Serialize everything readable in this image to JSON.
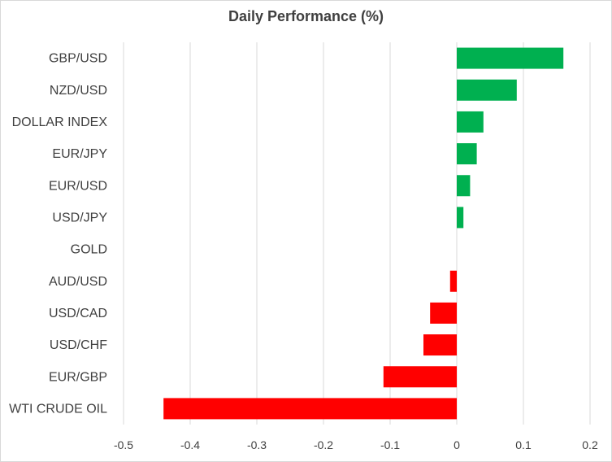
{
  "chart_data": {
    "type": "bar",
    "orientation": "horizontal",
    "title": "Daily Performance (%)",
    "xlabel": "",
    "ylabel": "",
    "xlim": [
      -0.5,
      0.2
    ],
    "xticks": [
      -0.5,
      -0.4,
      -0.3,
      -0.2,
      -0.1,
      0,
      0.1,
      0.2
    ],
    "xtick_labels": [
      "-0.5",
      "-0.4",
      "-0.3",
      "-0.2",
      "-0.1",
      "0",
      "0.1",
      "0.2"
    ],
    "grid": "vertical",
    "legend": "none",
    "categories": [
      "GBP/USD",
      "NZD/USD",
      "DOLLAR INDEX",
      "EUR/JPY",
      "EUR/USD",
      "USD/JPY",
      "GOLD",
      "AUD/USD",
      "USD/CAD",
      "USD/CHF",
      "EUR/GBP",
      "WTI CRUDE OIL"
    ],
    "values": [
      0.16,
      0.09,
      0.04,
      0.03,
      0.02,
      0.01,
      0.0,
      -0.01,
      -0.04,
      -0.05,
      -0.11,
      -0.44
    ],
    "colors": {
      "positive": "#00b050",
      "negative": "#ff0000",
      "grid": "#d9d9d9",
      "text": "#404040"
    }
  }
}
